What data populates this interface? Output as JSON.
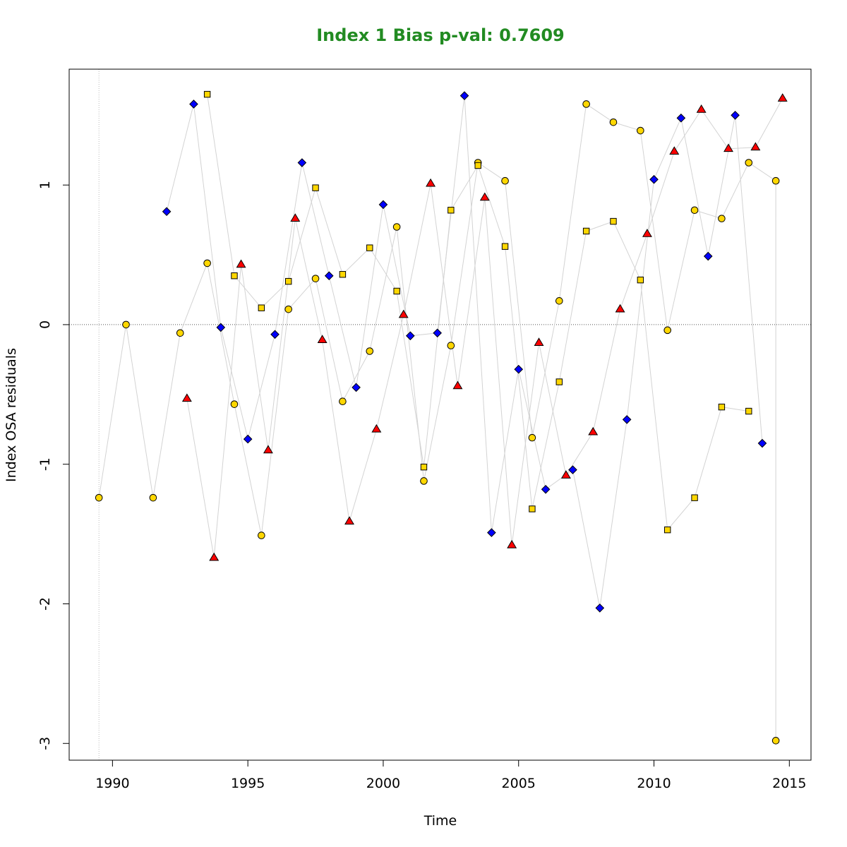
{
  "chart_data": {
    "type": "scatter",
    "title": "Index 1 Bias p-val: 0.7609",
    "xlabel": "Time",
    "ylabel": "Index OSA residuals",
    "xlim": [
      1988.4,
      1915.8
    ],
    "ylim": [
      -3.12,
      1.83
    ],
    "x_ticks": [
      1990,
      1995,
      2000,
      2005,
      2010,
      2015
    ],
    "x_tick_labels": [
      "1990",
      "1995",
      "2000",
      "2005",
      "2010",
      "2015"
    ],
    "y_ticks": [
      1,
      0,
      -1,
      -2,
      -3
    ],
    "y_tick_labels": [
      "1",
      "0",
      "-1",
      "-2",
      "-3"
    ],
    "reference_line_y": 0,
    "reference_line_x": 1989.5,
    "colors": {
      "title": "#228B22",
      "circle": "#FFD700",
      "square": "#FFD700",
      "diamond": "#0000FF",
      "triangle": "#FF0000",
      "connector": "#D3D3D3"
    },
    "series": [
      {
        "marker": "circle",
        "x": [
          1989.5,
          1990.5,
          1991.5,
          1992.5,
          1993.5,
          1994.5,
          1995.5,
          1996.5,
          1997.5,
          1998.5,
          1999.5,
          2000.5,
          2001.5,
          2002.5,
          2003.5,
          2004.5,
          2005.5,
          2006.5,
          2007.5,
          2008.5,
          2009.5,
          2010.5,
          2011.5,
          2012.5,
          2013.5,
          2014.5,
          2014.5
        ],
        "y": [
          -1.24,
          0.0,
          -1.24,
          -0.06,
          0.44,
          -0.57,
          -1.51,
          0.11,
          0.33,
          -0.55,
          -0.19,
          0.7,
          -1.12,
          -0.15,
          1.16,
          1.03,
          -0.81,
          0.17,
          1.58,
          1.45,
          1.39,
          -0.04,
          0.82,
          0.76,
          1.16,
          1.03,
          -2.98
        ]
      },
      {
        "marker": "square",
        "x": [
          1993.5,
          1994.5,
          1995.5,
          1996.5,
          1997.5,
          1998.5,
          1999.5,
          2000.5,
          2001.5,
          2002.5,
          2003.5,
          2004.5,
          2005.5,
          2006.5,
          2007.5,
          2008.5,
          2009.5,
          2010.5,
          2011.5,
          2012.5,
          2013.5
        ],
        "y": [
          1.65,
          0.35,
          0.12,
          0.31,
          0.98,
          0.36,
          0.55,
          0.24,
          -1.02,
          0.82,
          1.14,
          0.56,
          -1.32,
          -0.41,
          0.67,
          0.74,
          0.32,
          -1.47,
          -1.24,
          -0.59,
          -0.62
        ]
      },
      {
        "marker": "diamond",
        "x": [
          1992.0,
          1993.0,
          1994.0,
          1995.0,
          1996.0,
          1997.0,
          1998.0,
          1999.0,
          2000.0,
          2001.0,
          2002.0,
          2003.0,
          2004.0,
          2005.0,
          2006.0,
          2007.0,
          2008.0,
          2009.0,
          2010.0,
          2011.0,
          2012.0,
          2013.0,
          2014.0
        ],
        "y": [
          0.81,
          1.58,
          -0.02,
          -0.82,
          -0.07,
          1.16,
          0.35,
          -0.45,
          0.86,
          -0.08,
          -0.06,
          1.64,
          -1.49,
          -0.32,
          -1.18,
          -1.04,
          -2.03,
          -0.68,
          1.04,
          1.48,
          0.49,
          1.5,
          -0.85
        ]
      },
      {
        "marker": "triangle",
        "x": [
          1992.75,
          1993.75,
          1994.75,
          1995.75,
          1996.75,
          1997.75,
          1998.75,
          1999.75,
          2000.75,
          2001.75,
          2002.75,
          2003.75,
          2004.75,
          2005.75,
          2006.75,
          2007.75,
          2008.75,
          2009.75,
          2010.75,
          2011.75,
          2012.75,
          2013.75,
          2014.75
        ],
        "y": [
          -0.53,
          -1.67,
          0.43,
          -0.9,
          0.76,
          -0.11,
          -1.41,
          -0.75,
          0.07,
          1.01,
          -0.44,
          0.91,
          -1.58,
          -0.13,
          -1.08,
          -0.77,
          0.11,
          0.65,
          1.24,
          1.54,
          1.26,
          1.27,
          1.62
        ]
      }
    ]
  }
}
